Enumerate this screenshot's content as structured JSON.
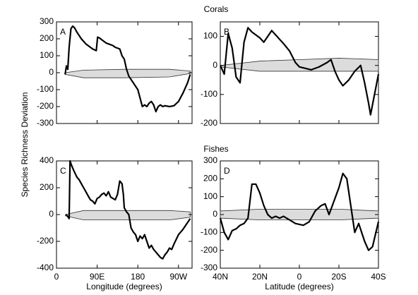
{
  "row_titles": [
    "Corals",
    "Fishes"
  ],
  "ylabel": "Species Richness Deviation",
  "chart_data": [
    {
      "type": "line",
      "label": "A",
      "xlim": [
        0,
        300
      ],
      "xticks": [
        0,
        90,
        180,
        270
      ],
      "ylim": [
        -300,
        300
      ],
      "yticks": [
        -300,
        -200,
        -100,
        0,
        100,
        200,
        300
      ],
      "x": [
        19,
        22,
        25,
        28,
        32,
        36,
        40,
        45,
        50,
        55,
        60,
        65,
        70,
        75,
        80,
        88,
        91,
        95,
        100,
        105,
        110,
        115,
        120,
        125,
        130,
        140,
        145,
        150,
        155,
        160,
        165,
        170,
        180,
        185,
        190,
        195,
        200,
        205,
        210,
        215,
        220,
        225,
        230,
        235,
        240,
        250,
        260,
        270,
        280,
        290,
        296
      ],
      "series": [
        {
          "color": "#000000",
          "values": [
            -10,
            40,
            20,
            150,
            260,
            275,
            265,
            240,
            220,
            200,
            185,
            170,
            160,
            150,
            140,
            130,
            210,
            205,
            195,
            185,
            175,
            170,
            165,
            160,
            150,
            140,
            100,
            80,
            20,
            -20,
            -40,
            -60,
            -100,
            -150,
            -200,
            -190,
            -200,
            -180,
            -170,
            -190,
            -230,
            -200,
            -190,
            -200,
            -195,
            -200,
            -195,
            -170,
            -120,
            -60,
            -10
          ]
        }
      ],
      "envelope": {
        "x": [
          19,
          60,
          150,
          250,
          296
        ],
        "upper": [
          0,
          15,
          20,
          20,
          10
        ],
        "lower": [
          -10,
          -30,
          -30,
          -25,
          -5
        ]
      }
    },
    {
      "type": "line",
      "label": "B",
      "xlim": [
        40,
        -40
      ],
      "xticks": [
        40,
        20,
        0,
        -20,
        -40
      ],
      "ylim": [
        -200,
        150
      ],
      "yticks": [
        -200,
        -100,
        0,
        100
      ],
      "x": [
        40,
        38,
        36,
        34,
        32,
        30,
        28,
        26,
        24,
        22,
        20,
        18,
        16,
        14,
        12,
        10,
        8,
        5,
        2,
        0,
        -3,
        -6,
        -10,
        -14,
        -16,
        -18,
        -20,
        -22,
        -25,
        -28,
        -31,
        -33,
        -35,
        -36,
        -38,
        -40
      ],
      "series": [
        {
          "color": "#000000",
          "values": [
            0,
            -30,
            110,
            60,
            -40,
            -60,
            80,
            130,
            115,
            105,
            95,
            80,
            100,
            120,
            105,
            90,
            75,
            50,
            10,
            -5,
            -10,
            -15,
            -5,
            10,
            20,
            -20,
            -50,
            -70,
            -50,
            -20,
            0,
            -60,
            -130,
            -170,
            -100,
            -30
          ]
        }
      ],
      "envelope": {
        "x": [
          40,
          20,
          0,
          -20,
          -40
        ],
        "upper": [
          0,
          15,
          20,
          25,
          20
        ],
        "lower": [
          -5,
          -20,
          -20,
          -20,
          -20
        ]
      }
    },
    {
      "type": "line",
      "label": "C",
      "xlabel": "Longitude (degrees)",
      "xlim": [
        0,
        300
      ],
      "xticks": [
        0,
        {
          "value": 90,
          "label": "90E"
        },
        180,
        {
          "value": 270,
          "label": "90W"
        }
      ],
      "ylim": [
        -400,
        400
      ],
      "yticks": [
        -400,
        -200,
        0,
        200,
        400
      ],
      "x": [
        20,
        24,
        28,
        30,
        33,
        38,
        45,
        50,
        55,
        60,
        65,
        70,
        75,
        80,
        85,
        90,
        95,
        100,
        105,
        110,
        115,
        120,
        125,
        130,
        135,
        140,
        145,
        148,
        150,
        155,
        160,
        165,
        170,
        175,
        180,
        185,
        190,
        195,
        200,
        205,
        210,
        215,
        220,
        225,
        230,
        235,
        240,
        245,
        250,
        255,
        260,
        270,
        280,
        290,
        296
      ],
      "series": [
        {
          "color": "#000000",
          "values": [
            0,
            -10,
            -30,
            400,
            370,
            330,
            280,
            260,
            230,
            200,
            170,
            140,
            110,
            100,
            80,
            120,
            130,
            150,
            160,
            140,
            170,
            130,
            120,
            110,
            150,
            250,
            230,
            150,
            50,
            20,
            0,
            -100,
            -130,
            -150,
            -200,
            -160,
            -180,
            -150,
            -200,
            -250,
            -230,
            -260,
            -280,
            -300,
            -320,
            -330,
            -300,
            -280,
            -250,
            -260,
            -220,
            -150,
            -110,
            -60,
            -30
          ]
        }
      ],
      "envelope": {
        "x": [
          20,
          60,
          150,
          250,
          296
        ],
        "upper": [
          0,
          30,
          30,
          30,
          20
        ],
        "lower": [
          -10,
          -40,
          -40,
          -40,
          -20
        ]
      }
    },
    {
      "type": "line",
      "label": "D",
      "xlabel": "Latitude (degrees)",
      "xlim": [
        40,
        -40
      ],
      "xticks": [
        {
          "value": 40,
          "label": "40N"
        },
        {
          "value": 20,
          "label": "20N"
        },
        0,
        {
          "value": -20,
          "label": "20S"
        },
        {
          "value": -40,
          "label": "40S"
        }
      ],
      "ylim": [
        -300,
        300
      ],
      "yticks": [
        -300,
        -200,
        -100,
        0,
        100,
        200,
        300
      ],
      "x": [
        40,
        38,
        36,
        34,
        32,
        30,
        28,
        26,
        24,
        22,
        20,
        18,
        16,
        14,
        12,
        10,
        8,
        5,
        2,
        0,
        -2,
        -5,
        -8,
        -11,
        -13,
        -15,
        -17,
        -20,
        -22,
        -24,
        -26,
        -28,
        -30,
        -33,
        -35,
        -37,
        -40
      ],
      "series": [
        {
          "color": "#000000",
          "values": [
            -20,
            -100,
            -140,
            -90,
            -80,
            -60,
            -50,
            -20,
            170,
            170,
            120,
            50,
            0,
            -20,
            -10,
            -20,
            -10,
            -30,
            -50,
            -55,
            -60,
            -40,
            20,
            50,
            60,
            0,
            60,
            150,
            230,
            200,
            50,
            -100,
            -50,
            -150,
            -200,
            -180,
            -40
          ]
        }
      ],
      "envelope": {
        "x": [
          40,
          20,
          0,
          -20,
          -40
        ],
        "upper": [
          20,
          30,
          30,
          30,
          20
        ],
        "lower": [
          -20,
          -30,
          -30,
          -30,
          -20
        ]
      }
    }
  ]
}
